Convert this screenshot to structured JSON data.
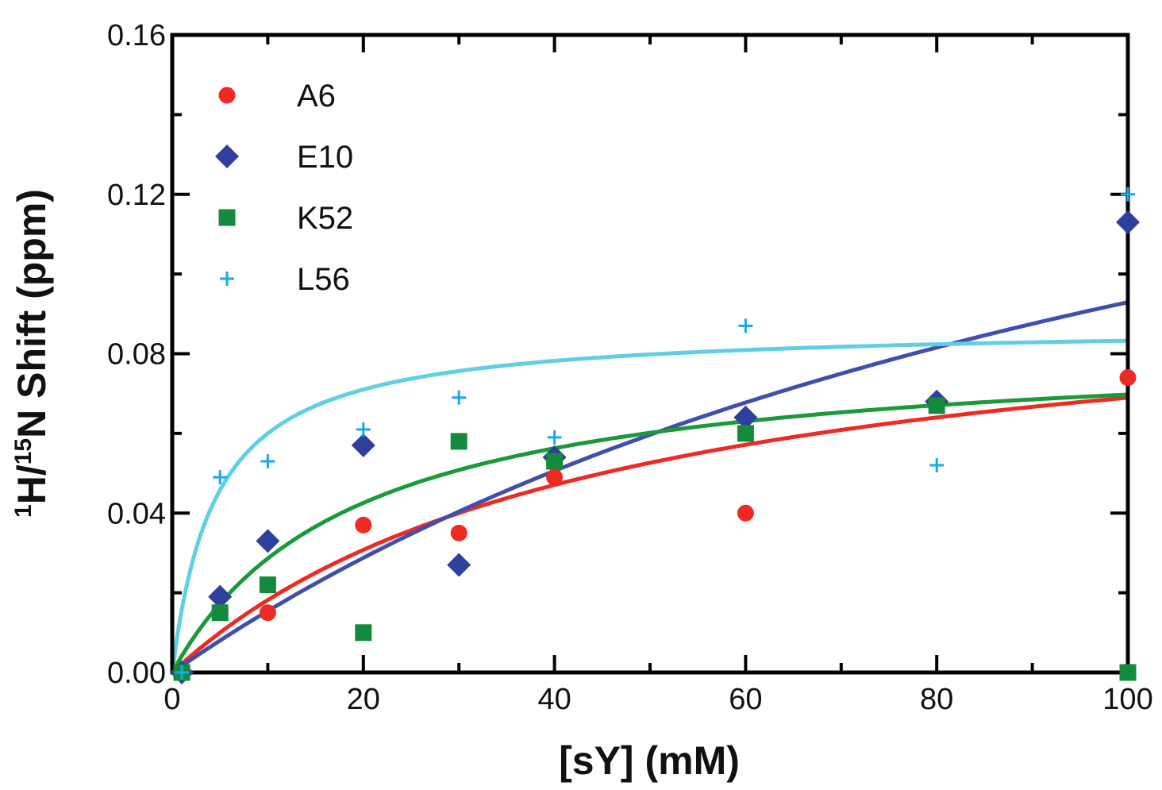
{
  "chart_data": {
    "type": "scatter",
    "title": "",
    "xlabel": "[sY] (mM)",
    "ylabel_parts": {
      "sup1": "1",
      "mid1": "H/",
      "sup2": "15",
      "mid2": "N Shift (ppm)"
    },
    "xlim": [
      0,
      100
    ],
    "ylim": [
      0,
      0.16
    ],
    "xticks": [
      0,
      20,
      40,
      60,
      80,
      100
    ],
    "yticks": [
      0.0,
      0.04,
      0.08,
      0.12,
      0.16
    ],
    "xtick_labels": [
      "0",
      "20",
      "40",
      "60",
      "80",
      "100"
    ],
    "ytick_labels": [
      "0.00",
      "0.04",
      "0.08",
      "0.12",
      "0.16"
    ],
    "legend_position": "top-left",
    "series": [
      {
        "name": "A6",
        "marker": "circle",
        "color": "#ee2a24",
        "x": [
          1,
          5,
          10,
          20,
          30,
          40,
          60,
          80,
          100
        ],
        "y": [
          0.0,
          0.015,
          0.015,
          0.037,
          0.035,
          0.049,
          0.04,
          0.067,
          0.074
        ],
        "fit": {
          "bmax": 0.1,
          "kd": 45
        }
      },
      {
        "name": "E10",
        "marker": "diamond",
        "color": "#2f3f9e",
        "x": [
          1,
          5,
          10,
          20,
          30,
          40,
          60,
          80,
          100
        ],
        "y": [
          0.0,
          0.019,
          0.033,
          0.057,
          0.027,
          0.054,
          0.064,
          0.068,
          0.113
        ],
        "fit": {
          "bmax": 0.21,
          "kd": 126
        }
      },
      {
        "name": "K52",
        "marker": "square",
        "color": "#138a3c",
        "x": [
          1,
          5,
          10,
          20,
          30,
          40,
          60,
          80,
          100
        ],
        "y": [
          0.0,
          0.015,
          0.022,
          0.01,
          0.058,
          0.053,
          0.06,
          0.067,
          0.0
        ],
        "fit": {
          "bmax": 0.083,
          "kd": 19
        }
      },
      {
        "name": "L56",
        "marker": "plus",
        "color": "#1aa9e8",
        "x": [
          1,
          5,
          10,
          20,
          30,
          40,
          60,
          80,
          100
        ],
        "y": [
          0.0,
          0.049,
          0.053,
          0.061,
          0.069,
          0.059,
          0.087,
          0.052,
          0.12
        ],
        "fit": {
          "bmax": 0.087,
          "kd": 4.5
        }
      }
    ],
    "fit_line_colors": [
      "#ee2a24",
      "#3f4fae",
      "#1b9a3a",
      "#5fd0e4"
    ]
  }
}
